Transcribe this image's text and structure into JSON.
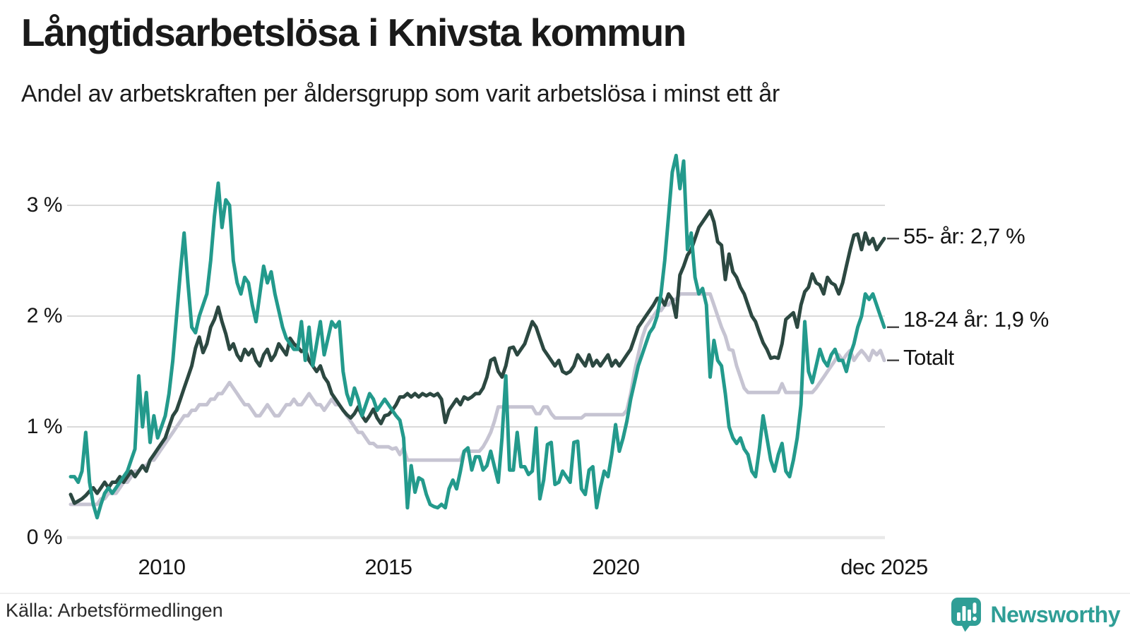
{
  "header": {
    "title": "Långtidsarbetslösa i Knivsta kommun",
    "subtitle": "Andel av arbetskraften per åldersgrupp som varit arbetslösa i minst ett år"
  },
  "axes": {
    "y_ticks": [
      {
        "label": "3 %",
        "value": 3
      },
      {
        "label": "2 %",
        "value": 2
      },
      {
        "label": "1 %",
        "value": 1
      },
      {
        "label": "0 %",
        "value": 0
      }
    ],
    "x_ticks": [
      {
        "label": "2010",
        "month_index": 24
      },
      {
        "label": "2015",
        "month_index": 84
      },
      {
        "label": "2020",
        "month_index": 144
      },
      {
        "label": "dec 2025",
        "month_index": 215
      }
    ]
  },
  "series_labels": [
    {
      "text": "55- år: 2,7 %"
    },
    {
      "text": "18-24 år: 1,9 %"
    },
    {
      "text": "Totalt"
    }
  ],
  "footer": {
    "source": "Källa: Arbetsförmedlingen",
    "brand": "Newsworthy"
  },
  "colors": {
    "teal_line": "#239a8c",
    "dark_green_line": "#2c4841",
    "gray_line": "#c6c4d2",
    "gridline": "#dadada",
    "zero_line": "#e9e9e9",
    "connector": "#4a4a4a",
    "text": "#1a1a1a",
    "brand_teal": "#2f9e96"
  },
  "chart_data": {
    "type": "line",
    "title": "Långtidsarbetslösa i Knivsta kommun",
    "subtitle": "Andel av arbetskraften per åldersgrupp som varit arbetslösa i minst ett år",
    "unit": "%",
    "frequency": "monthly",
    "x_start": "2008-01",
    "x_end": "2025-12",
    "ylim": [
      0,
      3.6
    ],
    "y_gridlines": [
      0,
      1,
      2,
      3
    ],
    "legend_position": "right-of-line-ends",
    "grid": "horizontal-only",
    "series": [
      {
        "name": "55- år",
        "end_label": "55- år: 2,7 %",
        "color": "#2c4841",
        "last_value": 2.7,
        "values": [
          0.39,
          0.31,
          0.33,
          0.35,
          0.38,
          0.42,
          0.45,
          0.4,
          0.45,
          0.5,
          0.45,
          0.5,
          0.5,
          0.55,
          0.5,
          0.55,
          0.6,
          0.55,
          0.6,
          0.65,
          0.6,
          0.7,
          0.75,
          0.8,
          0.85,
          0.9,
          1.0,
          1.1,
          1.15,
          1.25,
          1.35,
          1.45,
          1.55,
          1.71,
          1.81,
          1.67,
          1.75,
          1.9,
          1.97,
          2.08,
          1.95,
          1.84,
          1.7,
          1.75,
          1.65,
          1.6,
          1.7,
          1.65,
          1.7,
          1.6,
          1.55,
          1.65,
          1.7,
          1.6,
          1.65,
          1.75,
          1.7,
          1.65,
          1.8,
          1.75,
          1.72,
          1.68,
          1.7,
          1.6,
          1.55,
          1.5,
          1.55,
          1.45,
          1.4,
          1.3,
          1.25,
          1.2,
          1.15,
          1.11,
          1.08,
          1.12,
          1.18,
          1.1,
          1.05,
          1.1,
          1.16,
          1.08,
          1.03,
          1.1,
          1.11,
          1.15,
          1.2,
          1.27,
          1.27,
          1.3,
          1.27,
          1.3,
          1.27,
          1.3,
          1.28,
          1.3,
          1.28,
          1.3,
          1.25,
          1.04,
          1.15,
          1.2,
          1.25,
          1.2,
          1.27,
          1.25,
          1.27,
          1.3,
          1.3,
          1.35,
          1.45,
          1.6,
          1.62,
          1.5,
          1.45,
          1.55,
          1.71,
          1.72,
          1.65,
          1.7,
          1.75,
          1.85,
          1.95,
          1.9,
          1.8,
          1.7,
          1.65,
          1.6,
          1.55,
          1.6,
          1.5,
          1.48,
          1.5,
          1.55,
          1.65,
          1.6,
          1.55,
          1.65,
          1.55,
          1.6,
          1.55,
          1.6,
          1.65,
          1.55,
          1.6,
          1.55,
          1.6,
          1.65,
          1.7,
          1.8,
          1.9,
          1.95,
          2.0,
          2.05,
          2.1,
          2.16,
          2.16,
          2.1,
          2.2,
          2.15,
          1.99,
          2.37,
          2.45,
          2.55,
          2.6,
          2.7,
          2.8,
          2.85,
          2.9,
          2.95,
          2.85,
          2.67,
          2.64,
          2.33,
          2.56,
          2.4,
          2.35,
          2.26,
          2.2,
          2.1,
          2.0,
          1.95,
          1.85,
          1.76,
          1.7,
          1.62,
          1.63,
          1.62,
          1.75,
          1.97,
          2.0,
          2.03,
          1.9,
          2.1,
          2.22,
          2.26,
          2.38,
          2.3,
          2.28,
          2.2,
          2.35,
          2.3,
          2.28,
          2.2,
          2.3,
          2.45,
          2.6,
          2.73,
          2.74,
          2.6,
          2.75,
          2.65,
          2.7,
          2.6,
          2.65,
          2.7
        ]
      },
      {
        "name": "18-24 år",
        "end_label": "18-24 år: 1,9 %",
        "color": "#239a8c",
        "last_value": 1.9,
        "values": [
          0.55,
          0.55,
          0.5,
          0.6,
          0.95,
          0.5,
          0.3,
          0.18,
          0.3,
          0.4,
          0.45,
          0.4,
          0.45,
          0.5,
          0.55,
          0.6,
          0.7,
          0.8,
          1.46,
          1.0,
          1.31,
          0.86,
          1.1,
          0.9,
          1.0,
          1.1,
          1.3,
          1.6,
          2.0,
          2.4,
          2.75,
          2.3,
          1.9,
          1.85,
          2.0,
          2.1,
          2.2,
          2.5,
          2.9,
          3.2,
          2.8,
          3.05,
          3.0,
          2.5,
          2.3,
          2.2,
          2.35,
          2.3,
          2.1,
          1.95,
          2.2,
          2.45,
          2.3,
          2.4,
          2.2,
          2.05,
          1.9,
          1.8,
          1.75,
          1.7,
          1.7,
          1.95,
          1.6,
          1.9,
          1.55,
          1.75,
          1.95,
          1.65,
          1.8,
          1.95,
          1.9,
          1.95,
          1.5,
          1.3,
          1.2,
          1.35,
          1.25,
          1.1,
          1.2,
          1.3,
          1.25,
          1.15,
          1.2,
          1.25,
          1.2,
          1.15,
          1.1,
          1.06,
          0.9,
          0.27,
          0.65,
          0.41,
          0.54,
          0.52,
          0.39,
          0.3,
          0.28,
          0.27,
          0.3,
          0.27,
          0.44,
          0.52,
          0.44,
          0.6,
          0.78,
          0.81,
          0.61,
          0.73,
          0.73,
          0.61,
          0.65,
          0.78,
          0.64,
          0.5,
          0.9,
          1.46,
          0.61,
          0.61,
          0.95,
          0.64,
          0.64,
          0.57,
          0.6,
          0.99,
          0.35,
          0.52,
          0.84,
          0.86,
          0.48,
          0.5,
          0.6,
          0.55,
          0.5,
          0.86,
          0.87,
          0.44,
          0.39,
          0.61,
          0.64,
          0.27,
          0.45,
          0.6,
          0.55,
          0.75,
          1.02,
          0.78,
          0.9,
          1.05,
          1.25,
          1.4,
          1.55,
          1.65,
          1.75,
          1.85,
          1.9,
          2.0,
          2.2,
          2.5,
          2.9,
          3.3,
          3.45,
          3.15,
          3.4,
          2.6,
          2.75,
          2.35,
          2.2,
          2.25,
          2.1,
          1.45,
          1.78,
          1.6,
          1.55,
          1.3,
          1.0,
          0.9,
          0.85,
          0.9,
          0.8,
          0.75,
          0.6,
          0.55,
          0.8,
          1.1,
          0.9,
          0.7,
          0.6,
          0.75,
          0.85,
          0.6,
          0.55,
          0.7,
          0.9,
          1.2,
          1.95,
          1.5,
          1.4,
          1.55,
          1.7,
          1.6,
          1.55,
          1.65,
          1.7,
          1.6,
          1.6,
          1.5,
          1.65,
          1.75,
          1.9,
          2.0,
          2.2,
          2.15,
          2.2,
          2.1,
          2.0,
          1.9
        ]
      },
      {
        "name": "Totalt",
        "end_label": "Totalt",
        "color": "#c6c4d2",
        "last_value": 1.6,
        "values": [
          0.3,
          0.3,
          0.3,
          0.3,
          0.3,
          0.3,
          0.3,
          0.3,
          0.35,
          0.35,
          0.4,
          0.4,
          0.4,
          0.45,
          0.5,
          0.5,
          0.55,
          0.6,
          0.6,
          0.65,
          0.65,
          0.7,
          0.7,
          0.75,
          0.8,
          0.85,
          0.9,
          0.95,
          1.0,
          1.05,
          1.1,
          1.1,
          1.15,
          1.15,
          1.2,
          1.2,
          1.2,
          1.25,
          1.25,
          1.3,
          1.3,
          1.35,
          1.4,
          1.35,
          1.3,
          1.25,
          1.2,
          1.2,
          1.15,
          1.1,
          1.1,
          1.15,
          1.2,
          1.15,
          1.1,
          1.1,
          1.15,
          1.2,
          1.2,
          1.25,
          1.2,
          1.2,
          1.25,
          1.3,
          1.25,
          1.2,
          1.2,
          1.15,
          1.2,
          1.25,
          1.2,
          1.2,
          1.15,
          1.1,
          1.05,
          1.0,
          0.95,
          0.95,
          0.9,
          0.85,
          0.85,
          0.82,
          0.82,
          0.82,
          0.82,
          0.8,
          0.81,
          0.75,
          0.81,
          0.7,
          0.7,
          0.7,
          0.7,
          0.7,
          0.7,
          0.7,
          0.7,
          0.7,
          0.7,
          0.7,
          0.7,
          0.7,
          0.7,
          0.7,
          0.78,
          0.78,
          0.78,
          0.78,
          0.78,
          0.82,
          0.88,
          0.95,
          1.05,
          1.18,
          1.18,
          1.18,
          1.18,
          1.18,
          1.18,
          1.18,
          1.18,
          1.18,
          1.18,
          1.12,
          1.12,
          1.18,
          1.18,
          1.12,
          1.08,
          1.08,
          1.08,
          1.08,
          1.08,
          1.08,
          1.08,
          1.08,
          1.11,
          1.11,
          1.11,
          1.11,
          1.11,
          1.11,
          1.11,
          1.11,
          1.11,
          1.11,
          1.11,
          1.15,
          1.3,
          1.5,
          1.65,
          1.8,
          1.9,
          1.95,
          2.0,
          2.05,
          2.05,
          2.1,
          2.1,
          2.15,
          2.15,
          2.2,
          2.2,
          2.2,
          2.2,
          2.2,
          2.2,
          2.2,
          2.2,
          2.2,
          2.1,
          2.0,
          1.9,
          1.82,
          1.7,
          1.69,
          1.55,
          1.45,
          1.35,
          1.31,
          1.31,
          1.31,
          1.31,
          1.31,
          1.31,
          1.31,
          1.31,
          1.31,
          1.39,
          1.31,
          1.31,
          1.31,
          1.31,
          1.31,
          1.31,
          1.31,
          1.31,
          1.35,
          1.4,
          1.45,
          1.5,
          1.55,
          1.6,
          1.65,
          1.6,
          1.65,
          1.69,
          1.6,
          1.65,
          1.69,
          1.65,
          1.6,
          1.69,
          1.65,
          1.69,
          1.6
        ]
      }
    ]
  }
}
